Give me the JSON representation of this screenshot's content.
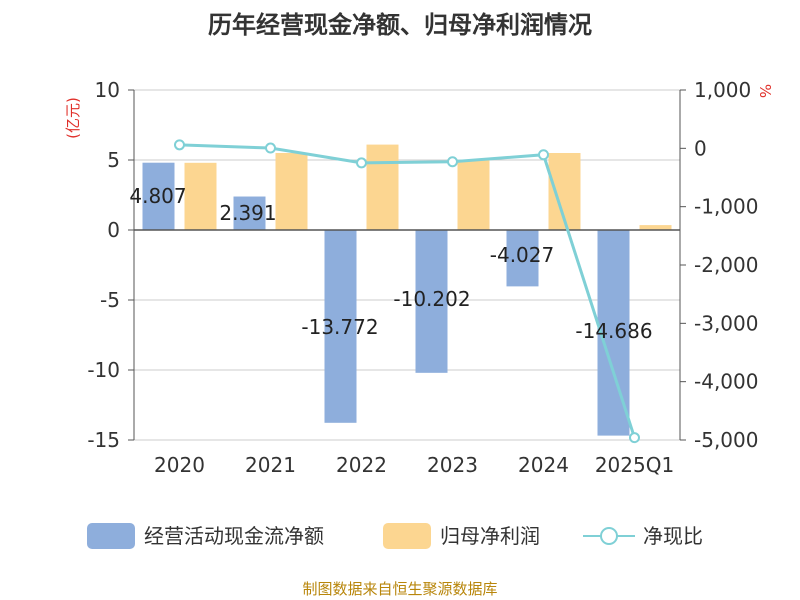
{
  "chart_data": {
    "type": "bar",
    "title": "历年经营现金净额、归母净利润情况",
    "categories": [
      "2020",
      "2021",
      "2022",
      "2023",
      "2024",
      "2025Q1"
    ],
    "left_axis": {
      "unit": "(亿元)",
      "ylim": [
        -15,
        10
      ],
      "ticks": [
        10,
        5,
        0,
        -5,
        -10,
        -15
      ],
      "tick_labels": [
        "10",
        "5",
        "0",
        "-5",
        "-10",
        "-15"
      ]
    },
    "right_axis": {
      "unit": "%",
      "ylim": [
        -5000,
        1000
      ],
      "ticks": [
        1000,
        0,
        -1000,
        -2000,
        -3000,
        -4000,
        -5000
      ],
      "tick_labels": [
        "1,000",
        "0",
        "-1,000",
        "-2,000",
        "-3,000",
        "-4,000",
        "-5,000"
      ]
    },
    "series": [
      {
        "name": "经营活动现金流净额",
        "type": "bar",
        "axis": "left",
        "color": "#8eaedc",
        "values": [
          4.807,
          2.391,
          -13.772,
          -10.202,
          -4.027,
          -14.686
        ],
        "labels": [
          "4.807",
          "2.391",
          "-13.772",
          "-10.202",
          "-4.027",
          "-14.686"
        ]
      },
      {
        "name": "归母净利润",
        "type": "bar",
        "axis": "left",
        "color": "#fcd691",
        "values": [
          4.8,
          5.5,
          6.1,
          5.0,
          5.5,
          0.35
        ]
      },
      {
        "name": "净现比",
        "type": "line",
        "axis": "right",
        "color": "#7fd0d6",
        "values": [
          60,
          5,
          -250,
          -230,
          -110,
          -4960
        ]
      }
    ],
    "legend_position": "bottom",
    "grid": true
  },
  "source_text": "制图数据来自恒生聚源数据库"
}
